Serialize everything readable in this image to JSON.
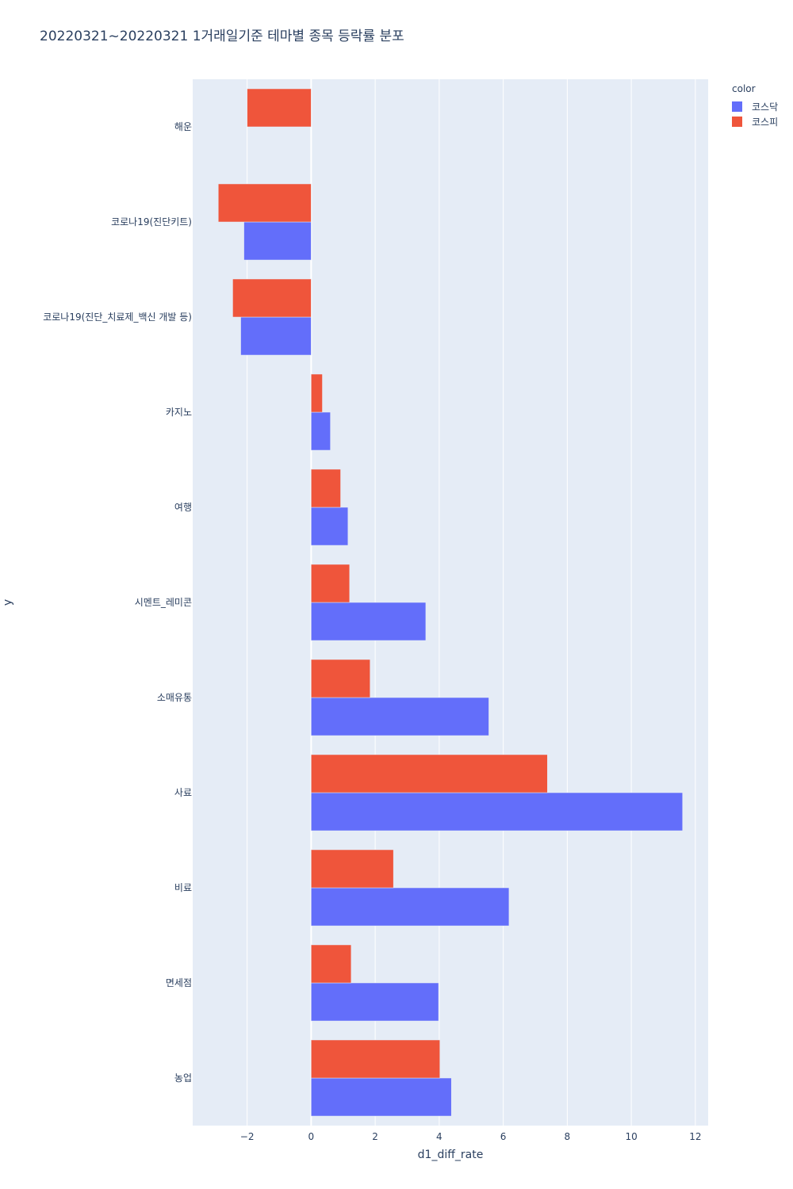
{
  "chart_data": {
    "type": "bar",
    "orientation": "horizontal",
    "title": "20220321~20220321 1거래일기준 테마별 종목 등락률 분포",
    "xlabel": "d1_diff_rate",
    "ylabel": "y",
    "xlim": [
      -3.7,
      12.4
    ],
    "xticks": [
      -2,
      0,
      2,
      4,
      6,
      8,
      10,
      12
    ],
    "xtick_labels": [
      "−2",
      "0",
      "2",
      "4",
      "6",
      "8",
      "10",
      "12"
    ],
    "categories": [
      "해운",
      "코로나19(진단키트)",
      "코로나19(진단_치료제_백신 개발 등)",
      "카지노",
      "여행",
      "시멘트_레미콘",
      "소매유통",
      "사료",
      "비료",
      "면세점",
      "농업"
    ],
    "legend_title": "color",
    "series": [
      {
        "name": "코스닥",
        "color": "#636efa",
        "values": [
          null,
          -2.1,
          -2.2,
          0.6,
          1.15,
          3.58,
          5.55,
          11.6,
          6.18,
          3.98,
          4.38
        ]
      },
      {
        "name": "코스피",
        "color": "#ef553b",
        "values": [
          -2.0,
          -2.9,
          -2.45,
          0.35,
          0.92,
          1.2,
          1.84,
          7.38,
          2.57,
          1.25,
          4.02
        ]
      }
    ],
    "legend_position": "top-right"
  }
}
